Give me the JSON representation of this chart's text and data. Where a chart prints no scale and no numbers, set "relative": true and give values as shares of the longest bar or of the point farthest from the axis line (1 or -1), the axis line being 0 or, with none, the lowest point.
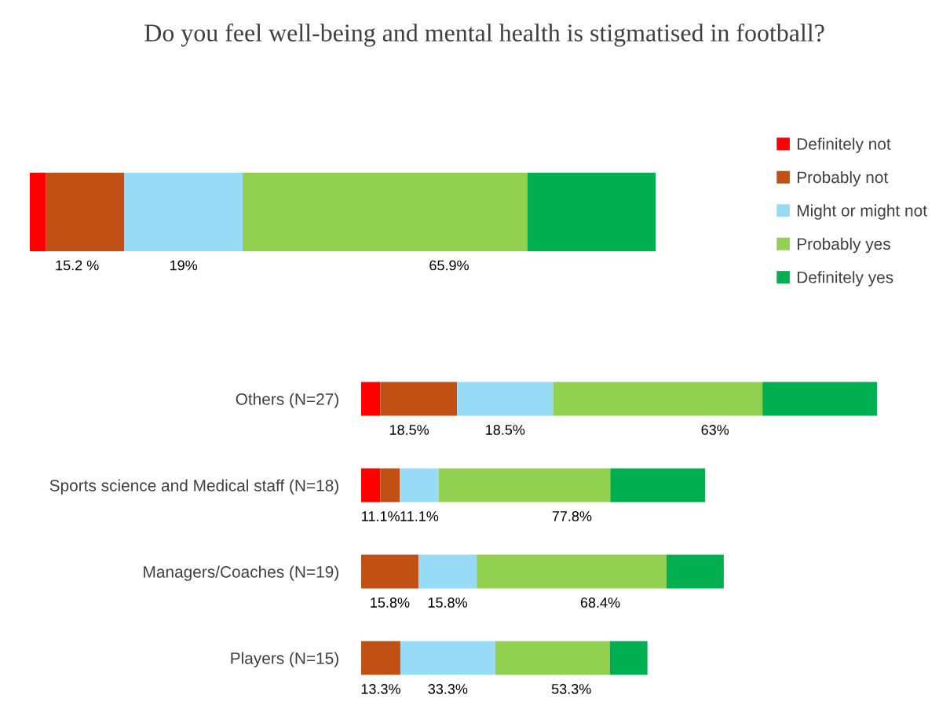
{
  "chart_data": [
    {
      "type": "bar",
      "orientation": "horizontal",
      "stacked": true,
      "relative": true,
      "title": "Do you feel well-being and mental health is stigmatised in football?",
      "categories": [
        null
      ],
      "legend": "right",
      "series": [
        {
          "name": "Definitely not",
          "color": "#ff0000",
          "values": [
            0.026
          ]
        },
        {
          "name": "Probably not",
          "color": "#c05013",
          "values": [
            0.125
          ]
        },
        {
          "name": "Might or might not",
          "color": "#97dbf7",
          "values": [
            0.189
          ]
        },
        {
          "name": "Probably yes",
          "color": "#92d050",
          "values": [
            0.455
          ]
        },
        {
          "name": "Definitely yes",
          "color": "#00b050",
          "values": [
            0.205
          ]
        }
      ],
      "annotations": [
        "15.2 %",
        "19%",
        "65.9%"
      ]
    },
    {
      "type": "bar",
      "orientation": "horizontal",
      "stacked": true,
      "relative": true,
      "categories": [
        "Others (N=27)",
        "Sports science and Medical staff (N=18)",
        "Managers/Coaches (N=19)",
        "Players (N=15)"
      ],
      "tick_labels": "y",
      "series": [
        {
          "color": "#ff0000",
          "values": [
            0.037,
            0.037,
            0,
            0
          ]
        },
        {
          "color": "#c05013",
          "values": [
            0.149,
            0.038,
            0.111,
            0.076
          ]
        },
        {
          "color": "#97dbf7",
          "values": [
            0.186,
            0.075,
            0.113,
            0.184
          ]
        },
        {
          "color": "#92d050",
          "values": [
            0.406,
            0.333,
            0.368,
            0.222
          ]
        },
        {
          "color": "#00b050",
          "values": [
            0.222,
            0.184,
            0.111,
            0.073
          ]
        }
      ],
      "annotations": [
        "18.5%",
        "18.5%",
        "63%",
        "11.1%",
        "11.1%",
        "77.8%",
        "15.8%",
        "15.8%",
        "68.4%",
        "13.3%",
        "33.3%",
        "53.3%"
      ]
    }
  ]
}
